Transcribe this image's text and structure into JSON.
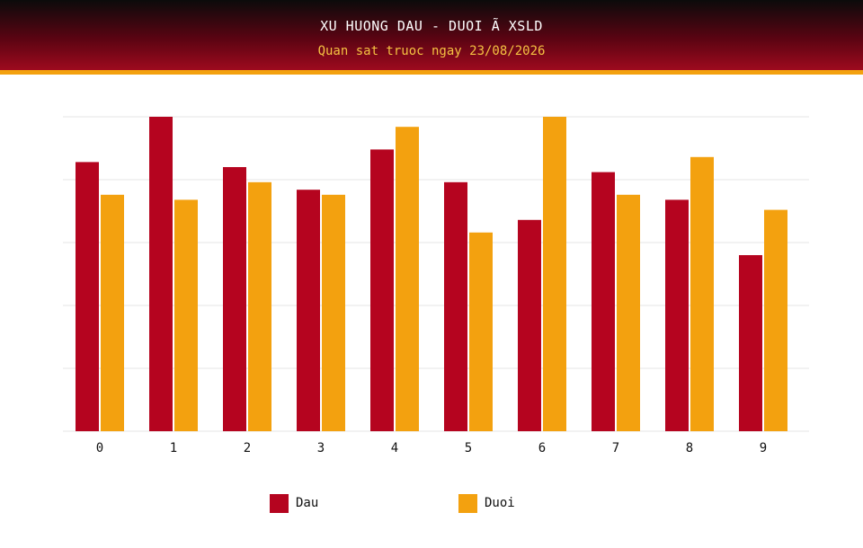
{
  "header": {
    "title": "XU HUONG DAU - DUOI Ã XSLD",
    "subtitle": "Quan sat truoc ngay 23/08/2026"
  },
  "colors": {
    "dau": "#b5041f",
    "duoi": "#f3a10f",
    "grid": "#e6e6e6",
    "header_stripe": "#f3a10f"
  },
  "chart_data": {
    "type": "bar",
    "categories": [
      "0",
      "1",
      "2",
      "3",
      "4",
      "5",
      "6",
      "7",
      "8",
      "9"
    ],
    "series": [
      {
        "name": "Dau",
        "values": [
          10.7,
          12.5,
          10.5,
          9.6,
          11.2,
          9.9,
          8.4,
          10.3,
          9.2,
          7.0
        ]
      },
      {
        "name": "Duoi",
        "values": [
          9.4,
          9.2,
          9.9,
          9.4,
          12.1,
          7.9,
          12.5,
          9.4,
          10.9,
          8.8
        ]
      }
    ],
    "ylim": [
      0,
      12.5
    ],
    "y_tick_labels_visible": false,
    "grid": true,
    "gridlines": 5,
    "legend_position": "bottom"
  },
  "legend": [
    {
      "label": "Dau",
      "color": "#b5041f"
    },
    {
      "label": "Duoi",
      "color": "#f3a10f"
    }
  ]
}
